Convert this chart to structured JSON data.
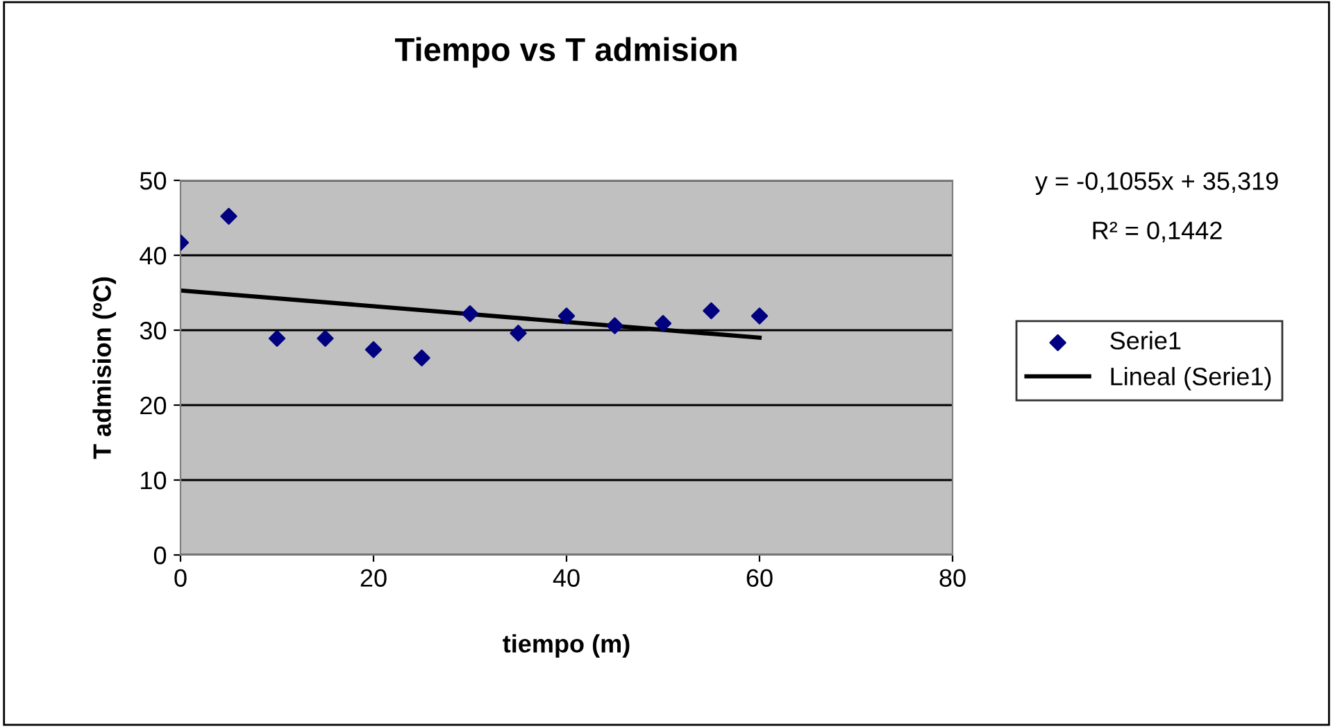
{
  "chart_data": {
    "type": "scatter",
    "title": "Tiempo vs T admision",
    "xlabel": "tiempo (m)",
    "ylabel": "T admision (ºC)",
    "annotations": [
      "y = -0,1055x + 35,319",
      "R² = 0,1442"
    ],
    "series": [
      {
        "name": "Serie1",
        "color": "#000080",
        "marker": "diamond",
        "x": [
          0,
          5,
          10,
          15,
          20,
          25,
          30,
          35,
          40,
          45,
          50,
          55,
          60
        ],
        "values": [
          41.7,
          45.2,
          28.9,
          28.9,
          27.4,
          26.3,
          32.2,
          29.6,
          31.9,
          30.6,
          30.9,
          32.6,
          31.9
        ]
      },
      {
        "name": "Lineal (Serie1)",
        "type": "line",
        "color": "#000000",
        "marker": "none",
        "line_style": "solid",
        "x": [
          0,
          60
        ],
        "values": [
          35.3,
          29.0
        ]
      }
    ],
    "xlim": [
      0,
      80
    ],
    "xticks": [
      0,
      20,
      40,
      60,
      80
    ],
    "ylim": [
      0,
      50
    ],
    "yticks": [
      0,
      10,
      20,
      30,
      40,
      50
    ],
    "grid": "y",
    "legend": "right"
  }
}
